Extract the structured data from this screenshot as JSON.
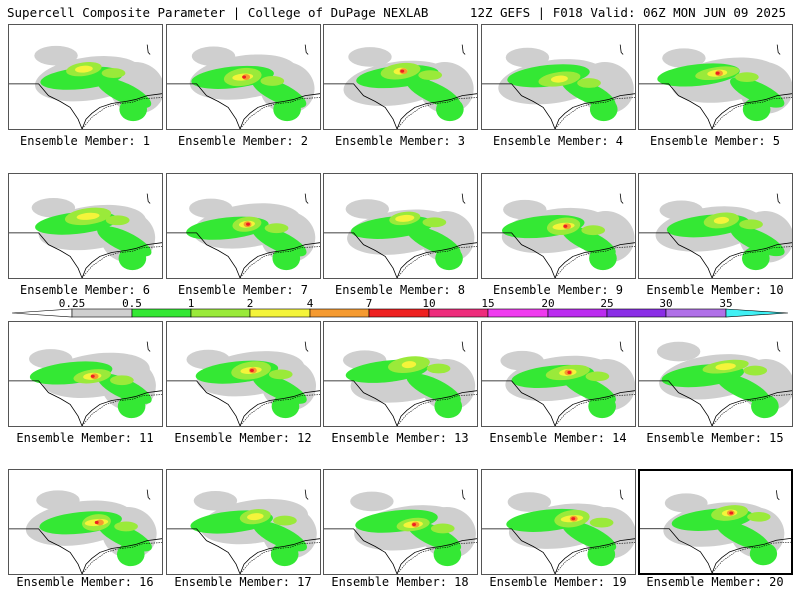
{
  "header": {
    "title_left": "Supercell Composite Parameter | College of DuPage NEXLAB",
    "title_right": "12Z GEFS | F018 Valid: 06Z MON JUN 09 2025"
  },
  "colorbar": {
    "labels": [
      "0.25",
      "0.5",
      "1",
      "2",
      "4",
      "7",
      "10",
      "15",
      "20",
      "25",
      "30",
      "35"
    ],
    "colors": [
      "#ffffff",
      "#cfcfcf",
      "#34e834",
      "#9aea3a",
      "#f4f43a",
      "#f59a30",
      "#ee2020",
      "#ee2c7c",
      "#ef3bef",
      "#bb2cf0",
      "#8a2ee6",
      "#b070e8",
      "#40f0f4"
    ]
  },
  "map": {
    "land_color": "#ffffff",
    "outline_color": "#000000"
  },
  "panels": [
    {
      "caption": "Ensemble Member: 1",
      "selected": false
    },
    {
      "caption": "Ensemble Member: 2",
      "selected": false
    },
    {
      "caption": "Ensemble Member: 3",
      "selected": false
    },
    {
      "caption": "Ensemble Member: 4",
      "selected": false
    },
    {
      "caption": "Ensemble Member: 5",
      "selected": false
    },
    {
      "caption": "Ensemble Member: 6",
      "selected": false
    },
    {
      "caption": "Ensemble Member: 7",
      "selected": false
    },
    {
      "caption": "Ensemble Member: 8",
      "selected": false
    },
    {
      "caption": "Ensemble Member: 9",
      "selected": false
    },
    {
      "caption": "Ensemble Member: 10",
      "selected": false
    },
    {
      "caption": "Ensemble Member: 11",
      "selected": false
    },
    {
      "caption": "Ensemble Member: 12",
      "selected": false
    },
    {
      "caption": "Ensemble Member: 13",
      "selected": false
    },
    {
      "caption": "Ensemble Member: 14",
      "selected": false
    },
    {
      "caption": "Ensemble Member: 15",
      "selected": false
    },
    {
      "caption": "Ensemble Member: 16",
      "selected": false
    },
    {
      "caption": "Ensemble Member: 17",
      "selected": false
    },
    {
      "caption": "Ensemble Member: 18",
      "selected": false
    },
    {
      "caption": "Ensemble Member: 19",
      "selected": false
    },
    {
      "caption": "Ensemble Member: 20",
      "selected": true
    }
  ]
}
